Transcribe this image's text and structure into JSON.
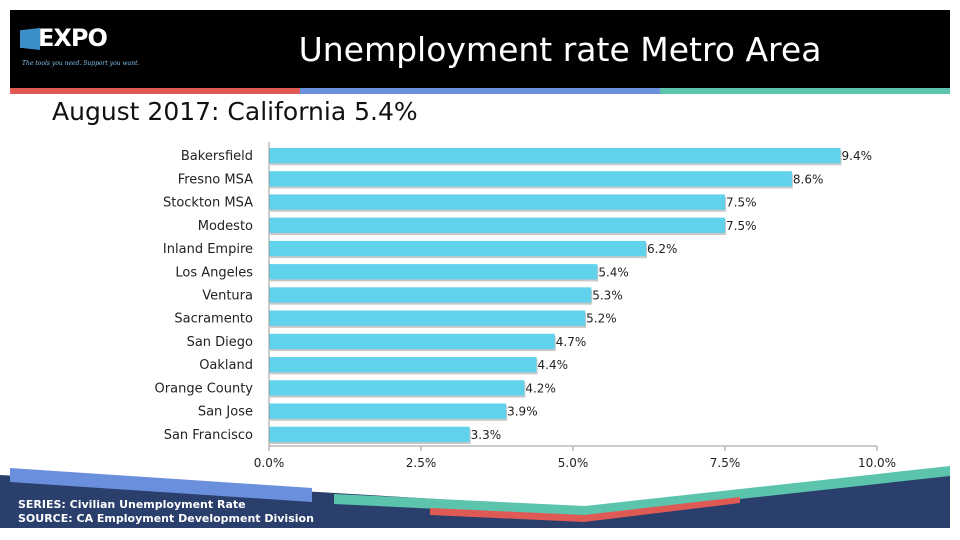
{
  "header": {
    "logo_text": "EXPO",
    "logo_tagline": "The tools you need. Support you want.",
    "title": "Unemployment rate Metro Area"
  },
  "subtitle": "August 2017: California 5.4%",
  "colors": {
    "bar": "#61d2ec",
    "header_bg": "#000000",
    "stripe_red": "#e05a55",
    "stripe_blue": "#6a8fdc",
    "stripe_teal": "#5cc3ad",
    "footer_navy": "#2a3f6b"
  },
  "chart_data": {
    "type": "bar",
    "orientation": "horizontal",
    "categories": [
      "Bakersfield",
      "Fresno MSA",
      "Stockton MSA",
      "Modesto",
      "Inland Empire",
      "Los Angeles",
      "Ventura",
      "Sacramento",
      "San Diego",
      "Oakland",
      "Orange County",
      "San Jose",
      "San Francisco"
    ],
    "values": [
      9.4,
      8.6,
      7.5,
      7.5,
      6.2,
      5.4,
      5.3,
      5.2,
      4.7,
      4.4,
      4.2,
      3.9,
      3.3
    ],
    "data_labels": [
      "9.4%",
      "8.6%",
      "7.5%",
      "7.5%",
      "6.2%",
      "5.4%",
      "5.3%",
      "5.2%",
      "4.7%",
      "4.4%",
      "4.2%",
      "3.9%",
      "3.3%"
    ],
    "xlim": [
      0,
      10
    ],
    "xticks": [
      0,
      2.5,
      5,
      7.5,
      10
    ],
    "xtick_labels": [
      "0.0%",
      "2.5%",
      "5.0%",
      "7.5%",
      "10.0%"
    ],
    "grid": false,
    "legend": "none"
  },
  "footer": {
    "series": "SERIES: Civilian Unemployment Rate",
    "source": "SOURCE:  CA Employment Development Division"
  }
}
